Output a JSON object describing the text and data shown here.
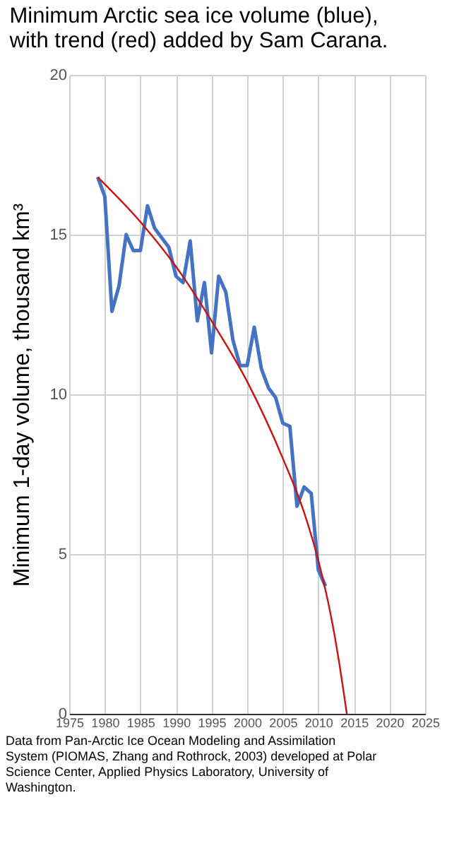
{
  "chart_data": {
    "type": "line",
    "title": [
      "Minimum Arctic sea ice volume (blue),",
      "with trend (red) added by Sam Carana."
    ],
    "ylabel": "Minimum 1-day volume, thousand km³",
    "xlim": [
      1975,
      2025
    ],
    "xticks": [
      1975,
      1980,
      1985,
      1990,
      1995,
      2000,
      2005,
      2010,
      2015,
      2020,
      2025
    ],
    "ylim": [
      0,
      20
    ],
    "yticks": [
      0,
      5,
      10,
      15,
      20
    ],
    "grid": true,
    "legend": false,
    "line_style": "solid",
    "series": [
      {
        "color": "#4472c4",
        "x": [
          1979,
          1980,
          1981,
          1982,
          1983,
          1984,
          1985,
          1986,
          1987,
          1988,
          1989,
          1990,
          1991,
          1992,
          1993,
          1994,
          1995,
          1996,
          1997,
          1998,
          1999,
          2000,
          2001,
          2002,
          2003,
          2004,
          2005,
          2006,
          2007,
          2008,
          2009,
          2010,
          2011
        ],
        "values": [
          16.8,
          16.2,
          12.6,
          13.4,
          15.0,
          14.5,
          14.5,
          15.9,
          15.2,
          14.9,
          14.6,
          13.7,
          13.5,
          14.8,
          12.3,
          13.5,
          11.3,
          13.7,
          13.2,
          11.7,
          10.9,
          10.9,
          12.1,
          10.8,
          10.2,
          9.9,
          9.1,
          9.0,
          6.5,
          7.1,
          6.9,
          4.5,
          4.0
        ]
      },
      {
        "color": "#d01010",
        "x": [
          1979,
          1985,
          1990,
          1995,
          2000,
          2005,
          2008,
          2010,
          2012,
          2013,
          2014
        ],
        "values": [
          16.8,
          15.4,
          14.0,
          12.3,
          10.4,
          8.0,
          6.3,
          4.8,
          2.8,
          1.5,
          0
        ]
      }
    ],
    "annotations": [
      "Data from Pan-Arctic Ice Ocean Modeling and Assimilation System (PIOMAS, Zhang and Rothrock, 2003) developed at Polar Science Center, Applied Physics Laboratory, University of Washington."
    ]
  }
}
